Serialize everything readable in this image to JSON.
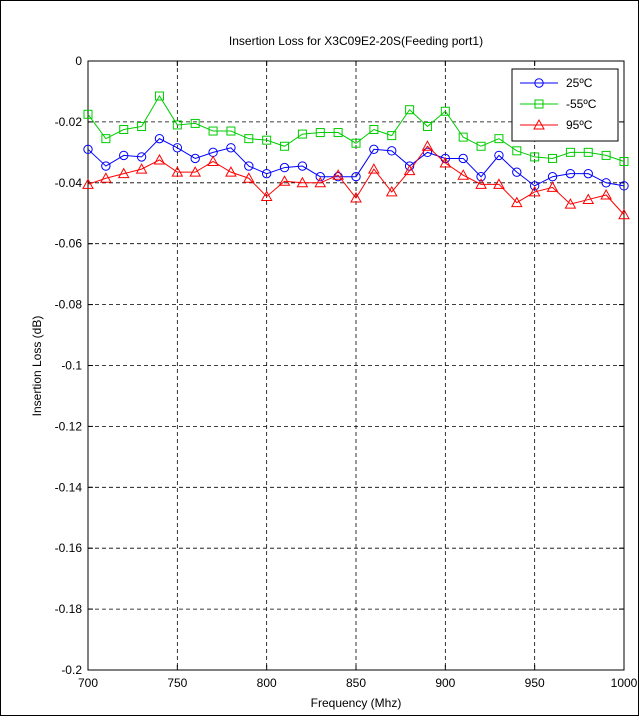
{
  "chart_data": {
    "type": "line",
    "title": "Insertion Loss for X3C09E2-20S(Feeding port1)",
    "xlabel": "Frequency (Mhz)",
    "ylabel": "Insertion Loss (dB)",
    "xlim": [
      700,
      1000
    ],
    "ylim": [
      -0.2,
      0
    ],
    "xticks": [
      700,
      750,
      800,
      850,
      900,
      950,
      1000
    ],
    "xtick_labels": [
      "700",
      "750",
      "800",
      "850",
      "900",
      "950",
      "1000"
    ],
    "yticks": [
      0,
      -0.02,
      -0.04,
      -0.06,
      -0.08,
      -0.1,
      -0.12,
      -0.14,
      -0.16,
      -0.18,
      -0.2
    ],
    "ytick_labels": [
      "0",
      "-0.02",
      "-0.04",
      "-0.06",
      "-0.08",
      "-0.1",
      "-0.12",
      "-0.14",
      "-0.16",
      "-0.18",
      "-0.2"
    ],
    "grid": true,
    "legend_position": "top-right",
    "x": [
      700,
      710,
      720,
      730,
      740,
      750,
      760,
      770,
      780,
      790,
      800,
      810,
      820,
      830,
      840,
      850,
      860,
      870,
      880,
      890,
      900,
      910,
      920,
      930,
      940,
      950,
      960,
      970,
      980,
      990,
      1000
    ],
    "series": [
      {
        "name": "25ºC",
        "color": "#0000ff",
        "marker": "circle",
        "values": [
          -0.029,
          -0.0345,
          -0.031,
          -0.0315,
          -0.0255,
          -0.0285,
          -0.032,
          -0.03,
          -0.0285,
          -0.0345,
          -0.037,
          -0.035,
          -0.0345,
          -0.038,
          -0.038,
          -0.038,
          -0.029,
          -0.0295,
          -0.0345,
          -0.03,
          -0.032,
          -0.032,
          -0.038,
          -0.031,
          -0.0365,
          -0.041,
          -0.038,
          -0.037,
          -0.037,
          -0.04,
          -0.041
        ]
      },
      {
        "name": "-55ºC",
        "color": "#00cc00",
        "marker": "square",
        "values": [
          -0.0175,
          -0.0255,
          -0.0225,
          -0.0215,
          -0.0115,
          -0.021,
          -0.0205,
          -0.023,
          -0.023,
          -0.0255,
          -0.026,
          -0.028,
          -0.024,
          -0.0235,
          -0.0235,
          -0.027,
          -0.0225,
          -0.0245,
          -0.016,
          -0.0215,
          -0.0165,
          -0.025,
          -0.028,
          -0.0255,
          -0.0295,
          -0.0315,
          -0.032,
          -0.03,
          -0.03,
          -0.031,
          -0.033
        ]
      },
      {
        "name": "95ºC",
        "color": "#ff0000",
        "marker": "triangle",
        "values": [
          -0.0405,
          -0.0385,
          -0.037,
          -0.0355,
          -0.0325,
          -0.0365,
          -0.0365,
          -0.033,
          -0.0365,
          -0.0385,
          -0.0445,
          -0.0395,
          -0.04,
          -0.04,
          -0.0375,
          -0.045,
          -0.0355,
          -0.043,
          -0.036,
          -0.028,
          -0.0335,
          -0.0375,
          -0.0405,
          -0.0405,
          -0.0465,
          -0.043,
          -0.0415,
          -0.047,
          -0.0455,
          -0.044,
          -0.0505
        ]
      }
    ]
  }
}
